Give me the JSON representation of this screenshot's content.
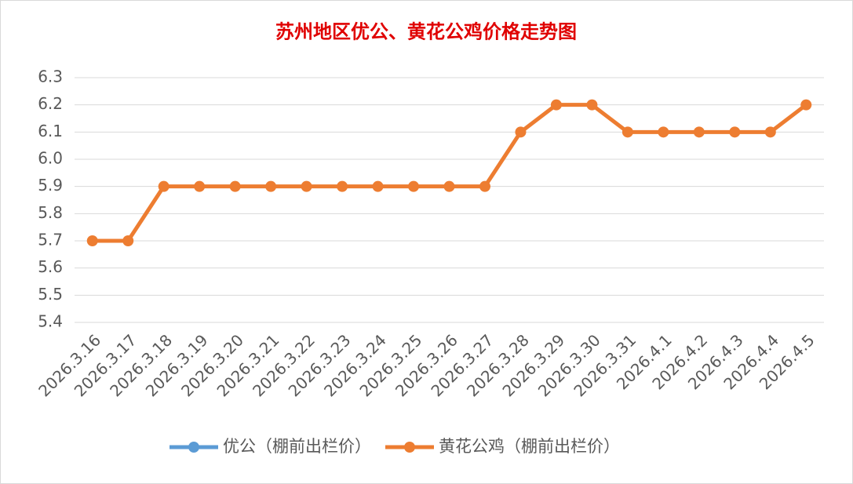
{
  "chart_data": {
    "type": "line",
    "title": "苏州地区优公、黄花公鸡价格走势图",
    "categories": [
      "2026.3.16",
      "2026.3.17",
      "2026.3.18",
      "2026.3.19",
      "2026.3.20",
      "2026.3.21",
      "2026.3.22",
      "2026.3.23",
      "2026.3.24",
      "2026.3.25",
      "2026.3.26",
      "2026.3.27",
      "2026.3.28",
      "2026.3.29",
      "2026.3.30",
      "2026.3.31",
      "2026.4.1",
      "2026.4.2",
      "2026.4.3",
      "2026.4.4",
      "2026.4.5"
    ],
    "series": [
      {
        "name": "优公（棚前出栏价）",
        "color": "#5b9bd5",
        "values": [
          null,
          null,
          null,
          null,
          null,
          null,
          null,
          null,
          null,
          null,
          null,
          null,
          null,
          null,
          null,
          null,
          null,
          null,
          null,
          null,
          null
        ]
      },
      {
        "name": "黄花公鸡（棚前出栏价）",
        "color": "#ed7d31",
        "values": [
          5.7,
          5.7,
          5.9,
          5.9,
          5.9,
          5.9,
          5.9,
          5.9,
          5.9,
          5.9,
          5.9,
          5.9,
          6.1,
          6.2,
          6.2,
          6.1,
          6.1,
          6.1,
          6.1,
          6.1,
          6.2
        ]
      }
    ],
    "ylim": [
      5.4,
      6.3
    ],
    "yticks": [
      5.4,
      5.5,
      5.6,
      5.7,
      5.8,
      5.9,
      {
        "value": 6,
        "label": "6.0"
      },
      6.1,
      6.2,
      6.3
    ],
    "grid": true,
    "legend": "bottom"
  }
}
